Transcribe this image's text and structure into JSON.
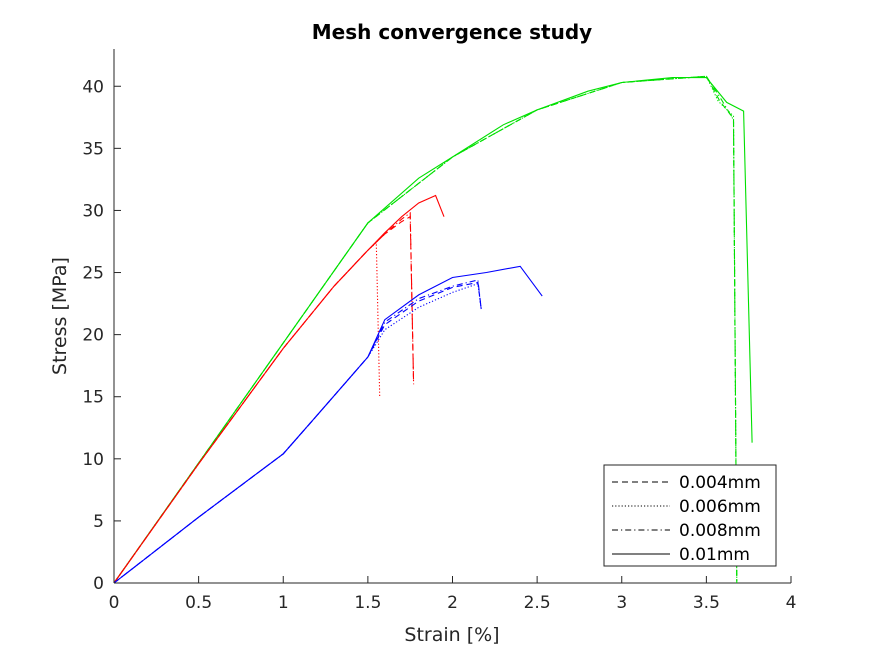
{
  "chart_data": {
    "type": "line",
    "title": "Mesh convergence study",
    "xlabel": "Strain [%]",
    "ylabel": "Stress [MPa]",
    "xlim": [
      0,
      4
    ],
    "ylim": [
      0,
      43
    ],
    "xticks": [
      0,
      0.5,
      1,
      1.5,
      2,
      2.5,
      3,
      3.5,
      4
    ],
    "xtick_labels": [
      "0",
      "0.5",
      "1",
      "1.5",
      "2",
      "2.5",
      "3",
      "3.5",
      "4"
    ],
    "yticks": [
      0,
      5,
      10,
      15,
      20,
      25,
      30,
      35,
      40
    ],
    "ytick_labels": [
      "0",
      "5",
      "10",
      "15",
      "20",
      "25",
      "30",
      "35",
      "40"
    ],
    "grid": false,
    "legend_position": "bottom-right",
    "legend": [
      {
        "label": "0.004mm",
        "dash": "dashed"
      },
      {
        "label": "0.006mm",
        "dash": "dotted"
      },
      {
        "label": "0.008mm",
        "dash": "dashdot"
      },
      {
        "label": "0.01mm",
        "dash": "solid"
      }
    ],
    "series": [
      {
        "color": "#00e000",
        "dash": "dashed",
        "x": [
          0,
          1.5,
          2.0,
          2.5,
          3.0,
          3.5,
          3.58,
          3.66,
          3.68
        ],
        "y": [
          0,
          29,
          34.3,
          38.1,
          40.3,
          40.8,
          38.8,
          37.4,
          0
        ]
      },
      {
        "color": "#00e000",
        "dash": "dotted",
        "x": [
          0,
          1.5,
          2.0,
          2.5,
          3.0,
          3.5,
          3.57,
          3.66,
          3.68
        ],
        "y": [
          0,
          29,
          34.3,
          38.1,
          40.3,
          40.8,
          38.8,
          37.6,
          0
        ]
      },
      {
        "color": "#00e000",
        "dash": "dashdot",
        "x": [
          0,
          1.5,
          2.0,
          2.5,
          3.0,
          3.5,
          3.59,
          3.66,
          3.68
        ],
        "y": [
          0,
          29,
          34.3,
          38.1,
          40.3,
          40.8,
          38.9,
          37.3,
          0
        ]
      },
      {
        "color": "#00e000",
        "dash": "solid",
        "x": [
          0,
          1.5,
          1.8,
          2.0,
          2.3,
          2.5,
          2.8,
          3.0,
          3.3,
          3.5,
          3.62,
          3.72,
          3.77
        ],
        "y": [
          0,
          29,
          32.6,
          34.3,
          36.9,
          38.1,
          39.6,
          40.3,
          40.7,
          40.7,
          38.7,
          38.0,
          11.3
        ]
      },
      {
        "color": "#ff0000",
        "dash": "dashed",
        "x": [
          0,
          0.5,
          1.0,
          1.3,
          1.5,
          1.6,
          1.7,
          1.75,
          1.77
        ],
        "y": [
          0,
          9.6,
          18.9,
          23.9,
          26.8,
          28.1,
          29.1,
          29.5,
          16.0
        ]
      },
      {
        "color": "#ff0000",
        "dash": "dotted",
        "x": [
          0,
          0.5,
          1.0,
          1.3,
          1.5,
          1.55,
          1.57
        ],
        "y": [
          0,
          9.6,
          18.9,
          23.9,
          26.8,
          27.4,
          15.0
        ]
      },
      {
        "color": "#ff0000",
        "dash": "dashdot",
        "x": [
          0,
          0.5,
          1.0,
          1.3,
          1.5,
          1.6,
          1.7,
          1.75,
          1.77
        ],
        "y": [
          0,
          9.6,
          18.9,
          23.9,
          26.8,
          28.1,
          29.3,
          29.8,
          16.0
        ]
      },
      {
        "color": "#ff0000",
        "dash": "solid",
        "x": [
          0,
          0.5,
          1.0,
          1.3,
          1.5,
          1.6,
          1.7,
          1.8,
          1.9,
          1.95
        ],
        "y": [
          0,
          9.6,
          18.9,
          23.9,
          26.8,
          28.2,
          29.5,
          30.6,
          31.2,
          29.5
        ]
      },
      {
        "color": "#0000ff",
        "dash": "dashed",
        "x": [
          0,
          0.5,
          1.0,
          1.2,
          1.5,
          1.6,
          1.8,
          2.0,
          2.15,
          2.17
        ],
        "y": [
          0,
          5.3,
          10.4,
          13.5,
          18.2,
          20.8,
          22.7,
          23.8,
          24.2,
          22.0
        ]
      },
      {
        "color": "#0000ff",
        "dash": "dotted",
        "x": [
          0,
          0.5,
          1.0,
          1.2,
          1.5,
          1.6,
          1.8,
          2.0,
          2.15,
          2.17
        ],
        "y": [
          0,
          5.3,
          10.4,
          13.5,
          18.2,
          20.4,
          22.2,
          23.4,
          24.1,
          22.0
        ]
      },
      {
        "color": "#0000ff",
        "dash": "dashdot",
        "x": [
          0,
          0.5,
          1.0,
          1.2,
          1.5,
          1.6,
          1.8,
          2.0,
          2.15,
          2.17
        ],
        "y": [
          0,
          5.3,
          10.4,
          13.5,
          18.2,
          21.0,
          22.9,
          23.9,
          24.4,
          22.0
        ]
      },
      {
        "color": "#0000ff",
        "dash": "solid",
        "x": [
          0,
          0.5,
          1.0,
          1.2,
          1.5,
          1.6,
          1.8,
          2.0,
          2.2,
          2.4,
          2.53
        ],
        "y": [
          0,
          5.3,
          10.4,
          13.5,
          18.2,
          21.2,
          23.2,
          24.6,
          25.0,
          25.5,
          23.1
        ]
      }
    ]
  }
}
